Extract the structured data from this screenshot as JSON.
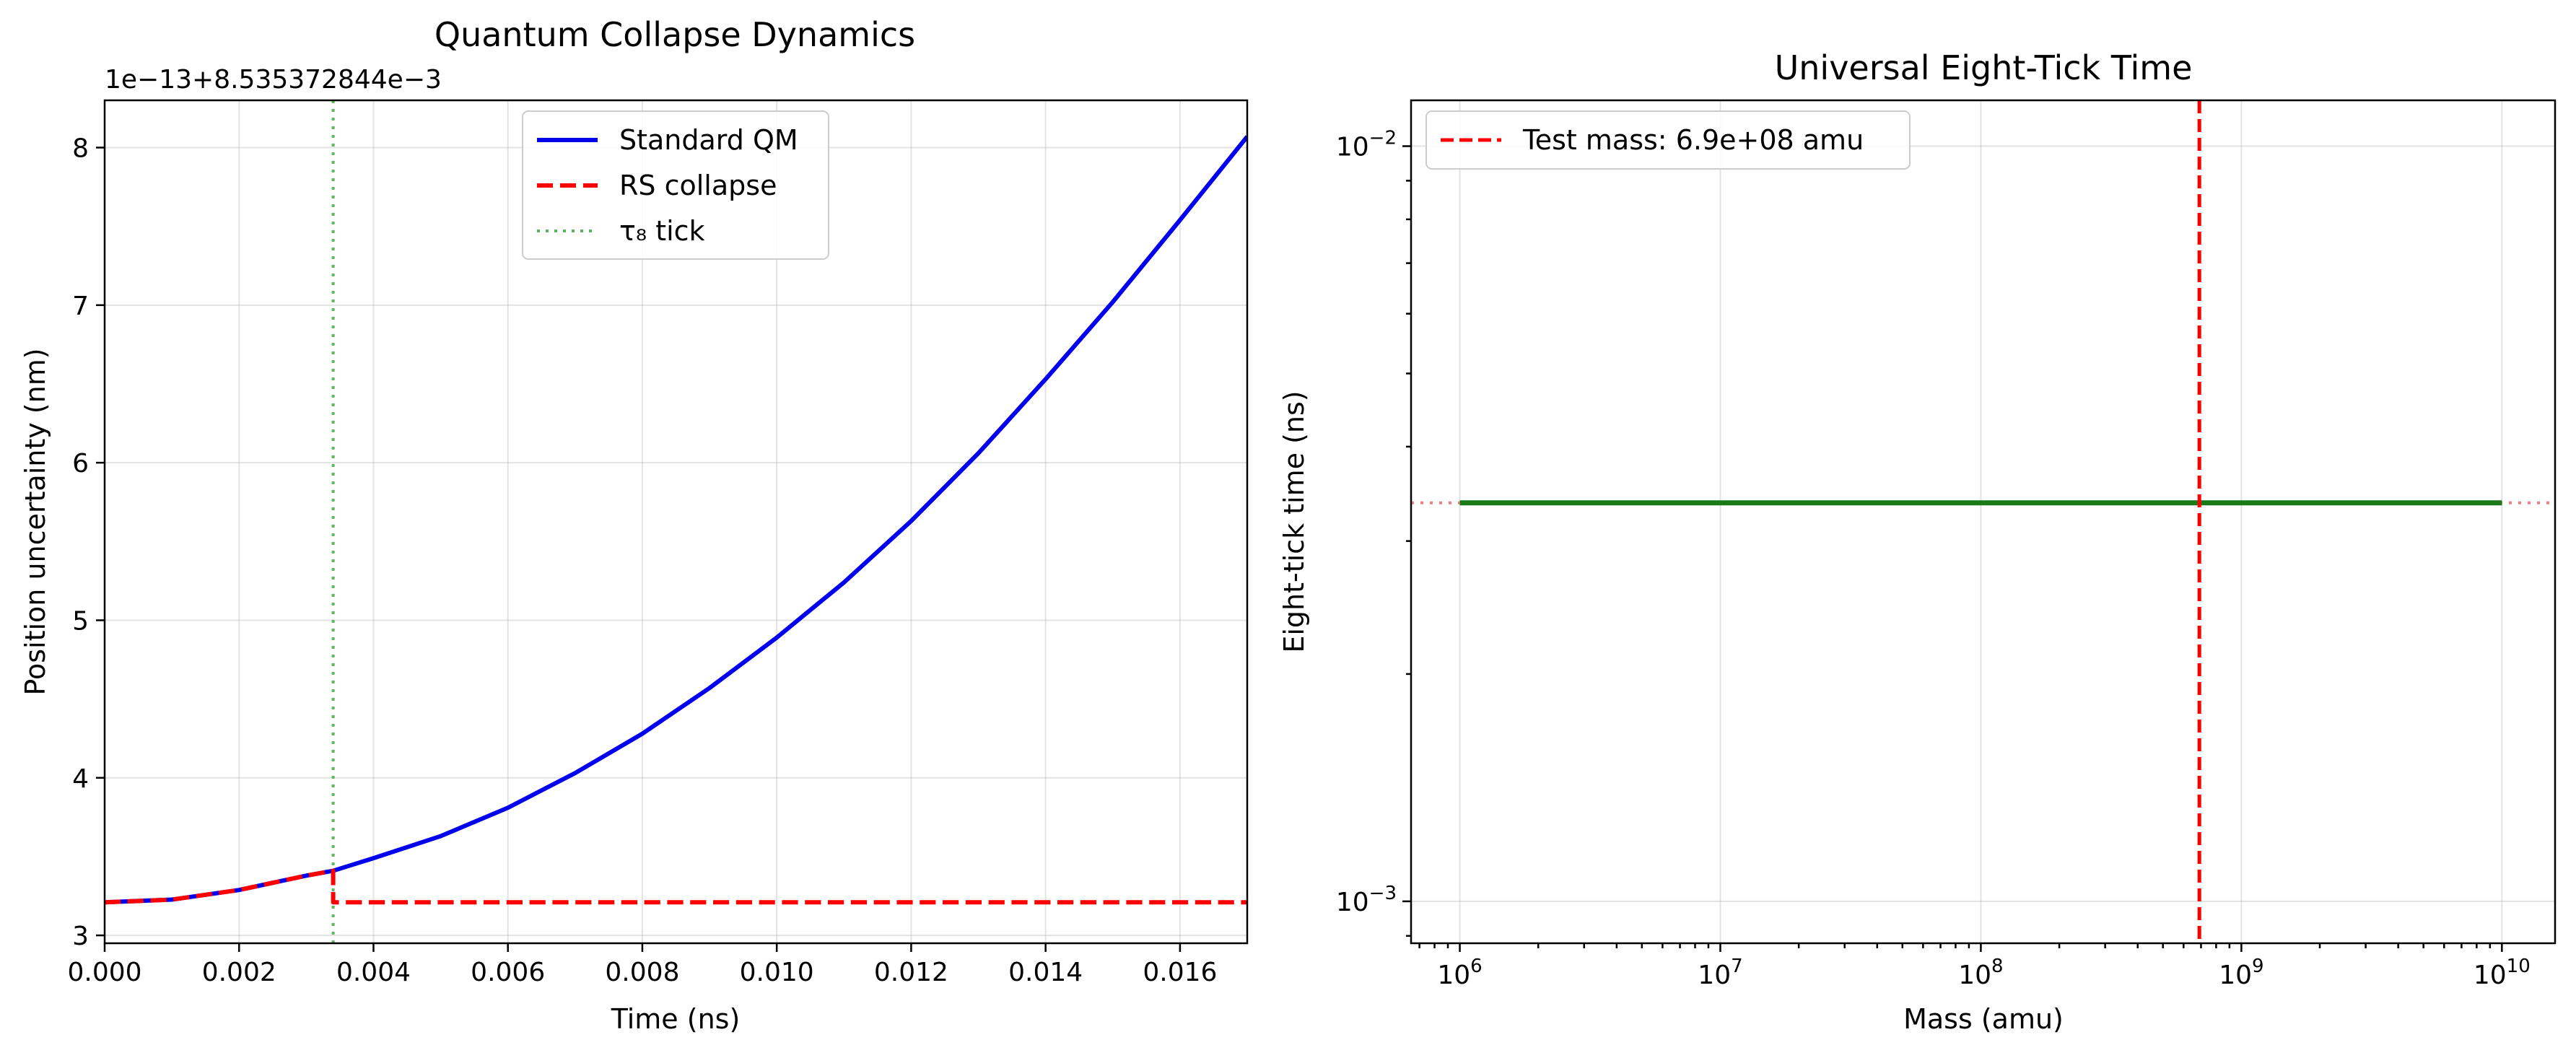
{
  "chart_data": [
    {
      "type": "line",
      "title": "Quantum Collapse Dynamics",
      "xlabel": "Time (ns)",
      "ylabel": "Position uncertainty (nm)",
      "y_offset_label": "1e−13+8.535372844e−3",
      "xlim": [
        0,
        0.017
      ],
      "ylim": [
        2.95,
        8.3
      ],
      "xticks": [
        0,
        0.002,
        0.004,
        0.006,
        0.008,
        0.01,
        0.012,
        0.014,
        0.016
      ],
      "xtick_labels": [
        "0.000",
        "0.002",
        "0.004",
        "0.006",
        "0.008",
        "0.010",
        "0.012",
        "0.014",
        "0.016"
      ],
      "yticks": [
        3,
        4,
        5,
        6,
        7,
        8
      ],
      "ytick_labels": [
        "3",
        "4",
        "5",
        "6",
        "7",
        "8"
      ],
      "grid": true,
      "legend_position": "top-center",
      "series": [
        {
          "name": "Standard QM",
          "color": "#0000ee",
          "style": "solid",
          "x": [
            0,
            0.001,
            0.002,
            0.003,
            0.0034,
            0.004,
            0.005,
            0.006,
            0.007,
            0.008,
            0.009,
            0.01,
            0.011,
            0.012,
            0.013,
            0.014,
            0.015,
            0.016,
            0.017
          ],
          "y": [
            3.21,
            3.227,
            3.288,
            3.379,
            3.41,
            3.49,
            3.63,
            3.81,
            4.03,
            4.28,
            4.57,
            4.89,
            5.24,
            5.63,
            6.06,
            6.53,
            7.02,
            7.54,
            8.07
          ]
        },
        {
          "name": "RS collapse",
          "color": "#ff0000",
          "style": "dashed",
          "x": [
            0,
            0.001,
            0.002,
            0.003,
            0.0034,
            0.0034,
            0.017
          ],
          "y": [
            3.21,
            3.227,
            3.288,
            3.379,
            3.41,
            3.21,
            3.21
          ]
        }
      ],
      "vlines": [
        {
          "name": "τ₈ tick",
          "x": 0.0034,
          "color": "#5cb85c",
          "style": "dotted"
        }
      ]
    },
    {
      "type": "line",
      "title": "Universal Eight-Tick Time",
      "xlabel": "Mass (amu)",
      "ylabel": "Eight-tick time (ns)",
      "x_scale": "log",
      "y_scale": "log",
      "xlim": [
        650000,
        16000000000
      ],
      "ylim": [
        0.00088,
        0.0115
      ],
      "xticks": [
        1000000,
        10000000,
        100000000,
        1000000000,
        10000000000
      ],
      "xtick_base": "10",
      "xtick_exponents": [
        "6",
        "7",
        "8",
        "9",
        "10"
      ],
      "yticks": [
        0.001,
        0.01
      ],
      "ytick_base": "10",
      "ytick_exponents": [
        "−3",
        "−2"
      ],
      "grid": true,
      "legend_position": "top-left",
      "series": [
        {
          "color": "#1a7a1a",
          "style": "solid",
          "x": [
            1000000,
            10000000000
          ],
          "y": [
            0.00337,
            0.00337
          ]
        }
      ],
      "hlines": [
        {
          "y": 0.00337,
          "color": "#f08080",
          "style": "dotted"
        }
      ],
      "vlines": [
        {
          "name": "Test mass: 6.9e+08 amu",
          "x": 690000000,
          "color": "#ff0000",
          "style": "dashed"
        }
      ]
    }
  ]
}
